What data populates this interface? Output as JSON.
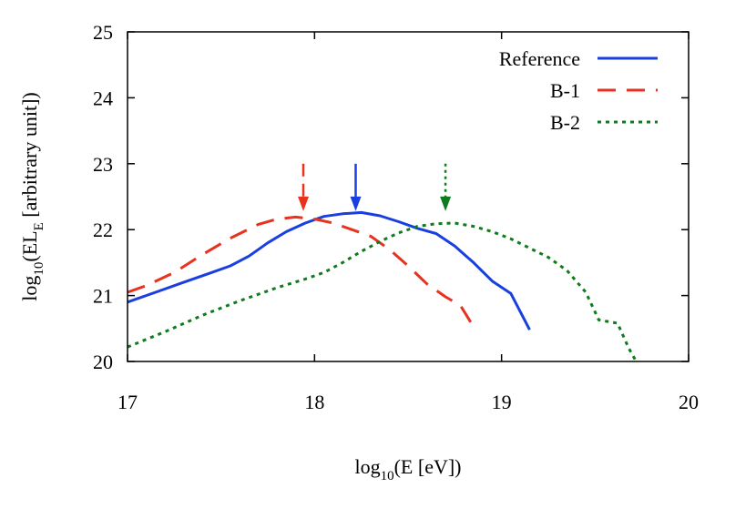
{
  "chart_data": {
    "type": "line",
    "xlim": [
      17,
      20
    ],
    "ylim": [
      20,
      25
    ],
    "x_ticks": [
      "17",
      "18",
      "19",
      "20"
    ],
    "y_ticks": [
      "20",
      "21",
      "22",
      "23",
      "24",
      "25"
    ],
    "xlabel": {
      "base": "log",
      "sub": "10",
      "rest": "(E [eV])"
    },
    "ylabel": {
      "base": "log",
      "sub1": "10",
      "mid": "(EL",
      "sub2": "E",
      "rest": " [arbitrary unit])"
    },
    "legend_placement": "top-right",
    "grid": false,
    "series": [
      {
        "name": "Reference",
        "color": "#1a3fe0",
        "style": "solid",
        "marker_x": 18.22,
        "marker_arrow_from_y": 23.0,
        "marker_arrow_to_y": 22.28,
        "points": [
          [
            17.0,
            20.9
          ],
          [
            17.15,
            21.05
          ],
          [
            17.3,
            21.2
          ],
          [
            17.45,
            21.35
          ],
          [
            17.55,
            21.45
          ],
          [
            17.65,
            21.6
          ],
          [
            17.75,
            21.8
          ],
          [
            17.85,
            21.97
          ],
          [
            17.95,
            22.1
          ],
          [
            18.05,
            22.2
          ],
          [
            18.15,
            22.24
          ],
          [
            18.25,
            22.26
          ],
          [
            18.35,
            22.21
          ],
          [
            18.45,
            22.12
          ],
          [
            18.55,
            22.02
          ],
          [
            18.65,
            21.94
          ],
          [
            18.75,
            21.75
          ],
          [
            18.85,
            21.5
          ],
          [
            18.95,
            21.22
          ],
          [
            19.05,
            21.03
          ],
          [
            19.15,
            20.48
          ]
        ]
      },
      {
        "name": "B-1",
        "color": "#e8321e",
        "style": "dashed",
        "marker_x": 17.94,
        "marker_arrow_from_y": 23.0,
        "marker_arrow_to_y": 22.28,
        "points": [
          [
            17.0,
            21.05
          ],
          [
            17.1,
            21.15
          ],
          [
            17.25,
            21.35
          ],
          [
            17.4,
            21.62
          ],
          [
            17.55,
            21.87
          ],
          [
            17.7,
            22.08
          ],
          [
            17.8,
            22.16
          ],
          [
            17.9,
            22.19
          ],
          [
            18.0,
            22.16
          ],
          [
            18.1,
            22.1
          ],
          [
            18.2,
            22.0
          ],
          [
            18.3,
            21.9
          ],
          [
            18.4,
            21.7
          ],
          [
            18.5,
            21.45
          ],
          [
            18.6,
            21.18
          ],
          [
            18.7,
            20.98
          ],
          [
            18.78,
            20.85
          ],
          [
            18.86,
            20.48
          ]
        ]
      },
      {
        "name": "B-2",
        "color": "#0f7a1e",
        "style": "dotted",
        "marker_x": 18.7,
        "marker_arrow_from_y": 23.0,
        "marker_arrow_to_y": 22.28,
        "points": [
          [
            17.0,
            20.22
          ],
          [
            17.2,
            20.45
          ],
          [
            17.4,
            20.7
          ],
          [
            17.6,
            20.92
          ],
          [
            17.8,
            21.12
          ],
          [
            17.95,
            21.25
          ],
          [
            18.05,
            21.35
          ],
          [
            18.15,
            21.5
          ],
          [
            18.25,
            21.67
          ],
          [
            18.35,
            21.82
          ],
          [
            18.45,
            21.95
          ],
          [
            18.55,
            22.05
          ],
          [
            18.65,
            22.09
          ],
          [
            18.75,
            22.1
          ],
          [
            18.85,
            22.05
          ],
          [
            18.95,
            21.97
          ],
          [
            19.05,
            21.86
          ],
          [
            19.15,
            21.72
          ],
          [
            19.25,
            21.58
          ],
          [
            19.35,
            21.38
          ],
          [
            19.45,
            21.05
          ],
          [
            19.52,
            20.63
          ],
          [
            19.62,
            20.58
          ],
          [
            19.68,
            20.2
          ],
          [
            19.72,
            20.0
          ]
        ]
      }
    ]
  }
}
